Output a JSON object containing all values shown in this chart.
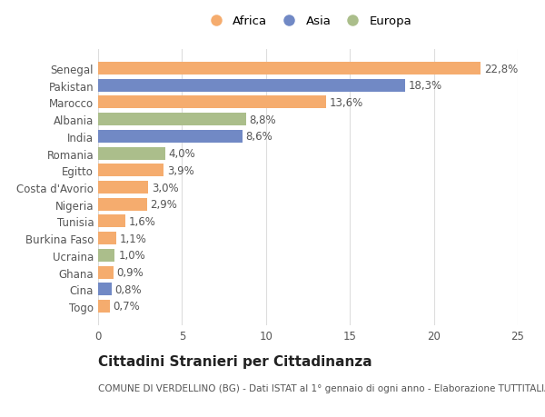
{
  "countries": [
    "Togo",
    "Cina",
    "Ghana",
    "Ucraina",
    "Burkina Faso",
    "Tunisia",
    "Nigeria",
    "Costa d'Avorio",
    "Egitto",
    "Romania",
    "India",
    "Albania",
    "Marocco",
    "Pakistan",
    "Senegal"
  ],
  "values": [
    0.7,
    0.8,
    0.9,
    1.0,
    1.1,
    1.6,
    2.9,
    3.0,
    3.9,
    4.0,
    8.6,
    8.8,
    13.6,
    18.3,
    22.8
  ],
  "labels": [
    "0,7%",
    "0,8%",
    "0,9%",
    "1,0%",
    "1,1%",
    "1,6%",
    "2,9%",
    "3,0%",
    "3,9%",
    "4,0%",
    "8,6%",
    "8,8%",
    "13,6%",
    "18,3%",
    "22,8%"
  ],
  "continents": [
    "Africa",
    "Asia",
    "Africa",
    "Europa",
    "Africa",
    "Africa",
    "Africa",
    "Africa",
    "Africa",
    "Europa",
    "Asia",
    "Europa",
    "Africa",
    "Asia",
    "Africa"
  ],
  "colors": {
    "Africa": "#F5AC6E",
    "Asia": "#7189C5",
    "Europa": "#ABBE8B"
  },
  "legend_labels": [
    "Africa",
    "Asia",
    "Europa"
  ],
  "legend_colors": [
    "#F5AC6E",
    "#7189C5",
    "#ABBE8B"
  ],
  "title": "Cittadini Stranieri per Cittadinanza",
  "subtitle": "COMUNE DI VERDELLINO (BG) - Dati ISTAT al 1° gennaio di ogni anno - Elaborazione TUTTITALIA.IT",
  "xlim": [
    0,
    25
  ],
  "xticks": [
    0,
    5,
    10,
    15,
    20,
    25
  ],
  "bg_color": "#ffffff",
  "grid_color": "#dddddd",
  "bar_height": 0.75,
  "label_fontsize": 8.5,
  "tick_fontsize": 8.5,
  "title_fontsize": 11,
  "subtitle_fontsize": 7.5
}
